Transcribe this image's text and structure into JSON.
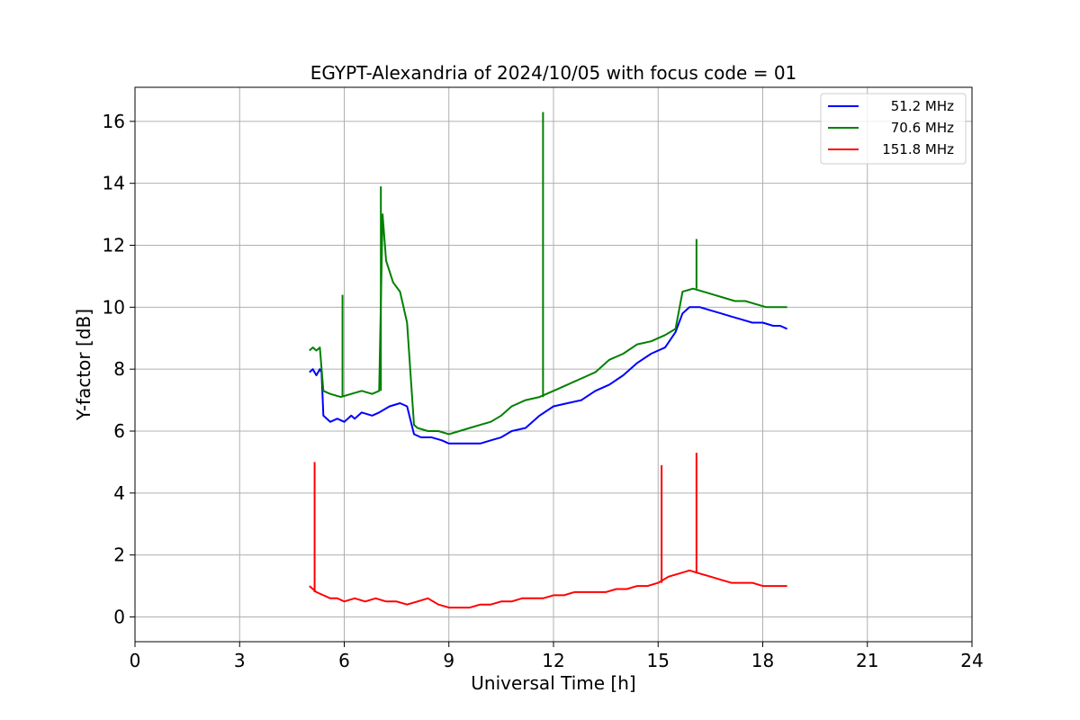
{
  "chart_data": {
    "type": "line",
    "title": "EGYPT-Alexandria of 2024/10/05 with focus code = 01",
    "xlabel": "Universal Time [h]",
    "ylabel": "Y-factor [dB]",
    "xlim": [
      0,
      24
    ],
    "ylim": [
      -0.8,
      17.1
    ],
    "xticks": [
      0,
      3,
      6,
      9,
      12,
      15,
      18,
      21,
      24
    ],
    "yticks": [
      0,
      2,
      4,
      6,
      8,
      10,
      12,
      14,
      16
    ],
    "grid": true,
    "legend_position": "top-right",
    "series": [
      {
        "name": "51.2 MHz",
        "color": "#0000ff",
        "x": [
          5.0,
          5.1,
          5.2,
          5.3,
          5.35,
          5.4,
          5.5,
          5.6,
          5.8,
          6.0,
          6.2,
          6.3,
          6.5,
          6.8,
          7.0,
          7.3,
          7.6,
          7.8,
          8.0,
          8.2,
          8.5,
          8.8,
          9.0,
          9.3,
          9.6,
          9.9,
          10.2,
          10.5,
          10.8,
          11.2,
          11.6,
          12.0,
          12.4,
          12.8,
          13.2,
          13.6,
          14.0,
          14.4,
          14.8,
          15.2,
          15.5,
          15.7,
          15.9,
          16.2,
          16.5,
          16.8,
          17.1,
          17.4,
          17.7,
          18.0,
          18.3,
          18.5,
          18.7
        ],
        "y": [
          7.9,
          8.0,
          7.8,
          8.0,
          7.9,
          6.5,
          6.4,
          6.3,
          6.4,
          6.3,
          6.5,
          6.4,
          6.6,
          6.5,
          6.6,
          6.8,
          6.9,
          6.8,
          5.9,
          5.8,
          5.8,
          5.7,
          5.6,
          5.6,
          5.6,
          5.6,
          5.7,
          5.8,
          6.0,
          6.1,
          6.5,
          6.8,
          6.9,
          7.0,
          7.3,
          7.5,
          7.8,
          8.2,
          8.5,
          8.7,
          9.2,
          9.8,
          10.0,
          10.0,
          9.9,
          9.8,
          9.7,
          9.6,
          9.5,
          9.5,
          9.4,
          9.4,
          9.3
        ]
      },
      {
        "name": "70.6 MHz",
        "color": "#008000",
        "x": [
          5.0,
          5.1,
          5.2,
          5.3,
          5.4,
          5.6,
          5.9,
          6.2,
          6.5,
          6.8,
          7.0,
          7.1,
          7.2,
          7.4,
          7.6,
          7.8,
          8.0,
          8.1,
          8.4,
          8.7,
          9.0,
          9.3,
          9.6,
          9.9,
          10.2,
          10.5,
          10.8,
          11.2,
          11.6,
          12.0,
          12.4,
          12.8,
          13.2,
          13.6,
          14.0,
          14.4,
          14.8,
          15.2,
          15.5,
          15.7,
          16.0,
          16.3,
          16.6,
          16.9,
          17.2,
          17.5,
          17.8,
          18.1,
          18.4,
          18.7
        ],
        "y": [
          8.6,
          8.7,
          8.6,
          8.7,
          7.3,
          7.2,
          7.1,
          7.2,
          7.3,
          7.2,
          7.3,
          13.0,
          11.5,
          10.8,
          10.5,
          9.5,
          6.2,
          6.1,
          6.0,
          6.0,
          5.9,
          6.0,
          6.1,
          6.2,
          6.3,
          6.5,
          6.8,
          7.0,
          7.1,
          7.3,
          7.5,
          7.7,
          7.9,
          8.3,
          8.5,
          8.8,
          8.9,
          9.1,
          9.3,
          10.5,
          10.6,
          10.5,
          10.4,
          10.3,
          10.2,
          10.2,
          10.1,
          10.0,
          10.0,
          10.0
        ]
      },
      {
        "name": "151.8 MHz",
        "color": "#ff0000",
        "x": [
          5.0,
          5.2,
          5.4,
          5.6,
          5.8,
          6.0,
          6.3,
          6.6,
          6.9,
          7.2,
          7.5,
          7.8,
          8.1,
          8.4,
          8.7,
          9.0,
          9.3,
          9.6,
          9.9,
          10.2,
          10.5,
          10.8,
          11.1,
          11.4,
          11.7,
          12.0,
          12.3,
          12.6,
          12.9,
          13.2,
          13.5,
          13.8,
          14.1,
          14.4,
          14.7,
          15.0,
          15.3,
          15.6,
          15.9,
          16.2,
          16.5,
          16.8,
          17.1,
          17.4,
          17.7,
          18.0,
          18.3,
          18.5,
          18.7
        ],
        "y": [
          1.0,
          0.8,
          0.7,
          0.6,
          0.6,
          0.5,
          0.6,
          0.5,
          0.6,
          0.5,
          0.5,
          0.4,
          0.5,
          0.6,
          0.4,
          0.3,
          0.3,
          0.3,
          0.4,
          0.4,
          0.5,
          0.5,
          0.6,
          0.6,
          0.6,
          0.7,
          0.7,
          0.8,
          0.8,
          0.8,
          0.8,
          0.9,
          0.9,
          1.0,
          1.0,
          1.1,
          1.3,
          1.4,
          1.5,
          1.4,
          1.3,
          1.2,
          1.1,
          1.1,
          1.1,
          1.0,
          1.0,
          1.0,
          1.0
        ]
      }
    ],
    "annotations": [
      {
        "series": "70.6 MHz",
        "x": 11.7,
        "y": 16.3
      },
      {
        "series": "70.6 MHz",
        "x": 7.05,
        "y": 13.9
      },
      {
        "series": "70.6 MHz",
        "x": 16.1,
        "y": 12.2
      },
      {
        "series": "70.6 MHz",
        "x": 5.95,
        "y": 10.4
      },
      {
        "series": "151.8 MHz",
        "x": 16.1,
        "y": 5.3
      },
      {
        "series": "151.8 MHz",
        "x": 5.15,
        "y": 5.0
      },
      {
        "series": "151.8 MHz",
        "x": 15.1,
        "y": 4.9
      }
    ]
  }
}
